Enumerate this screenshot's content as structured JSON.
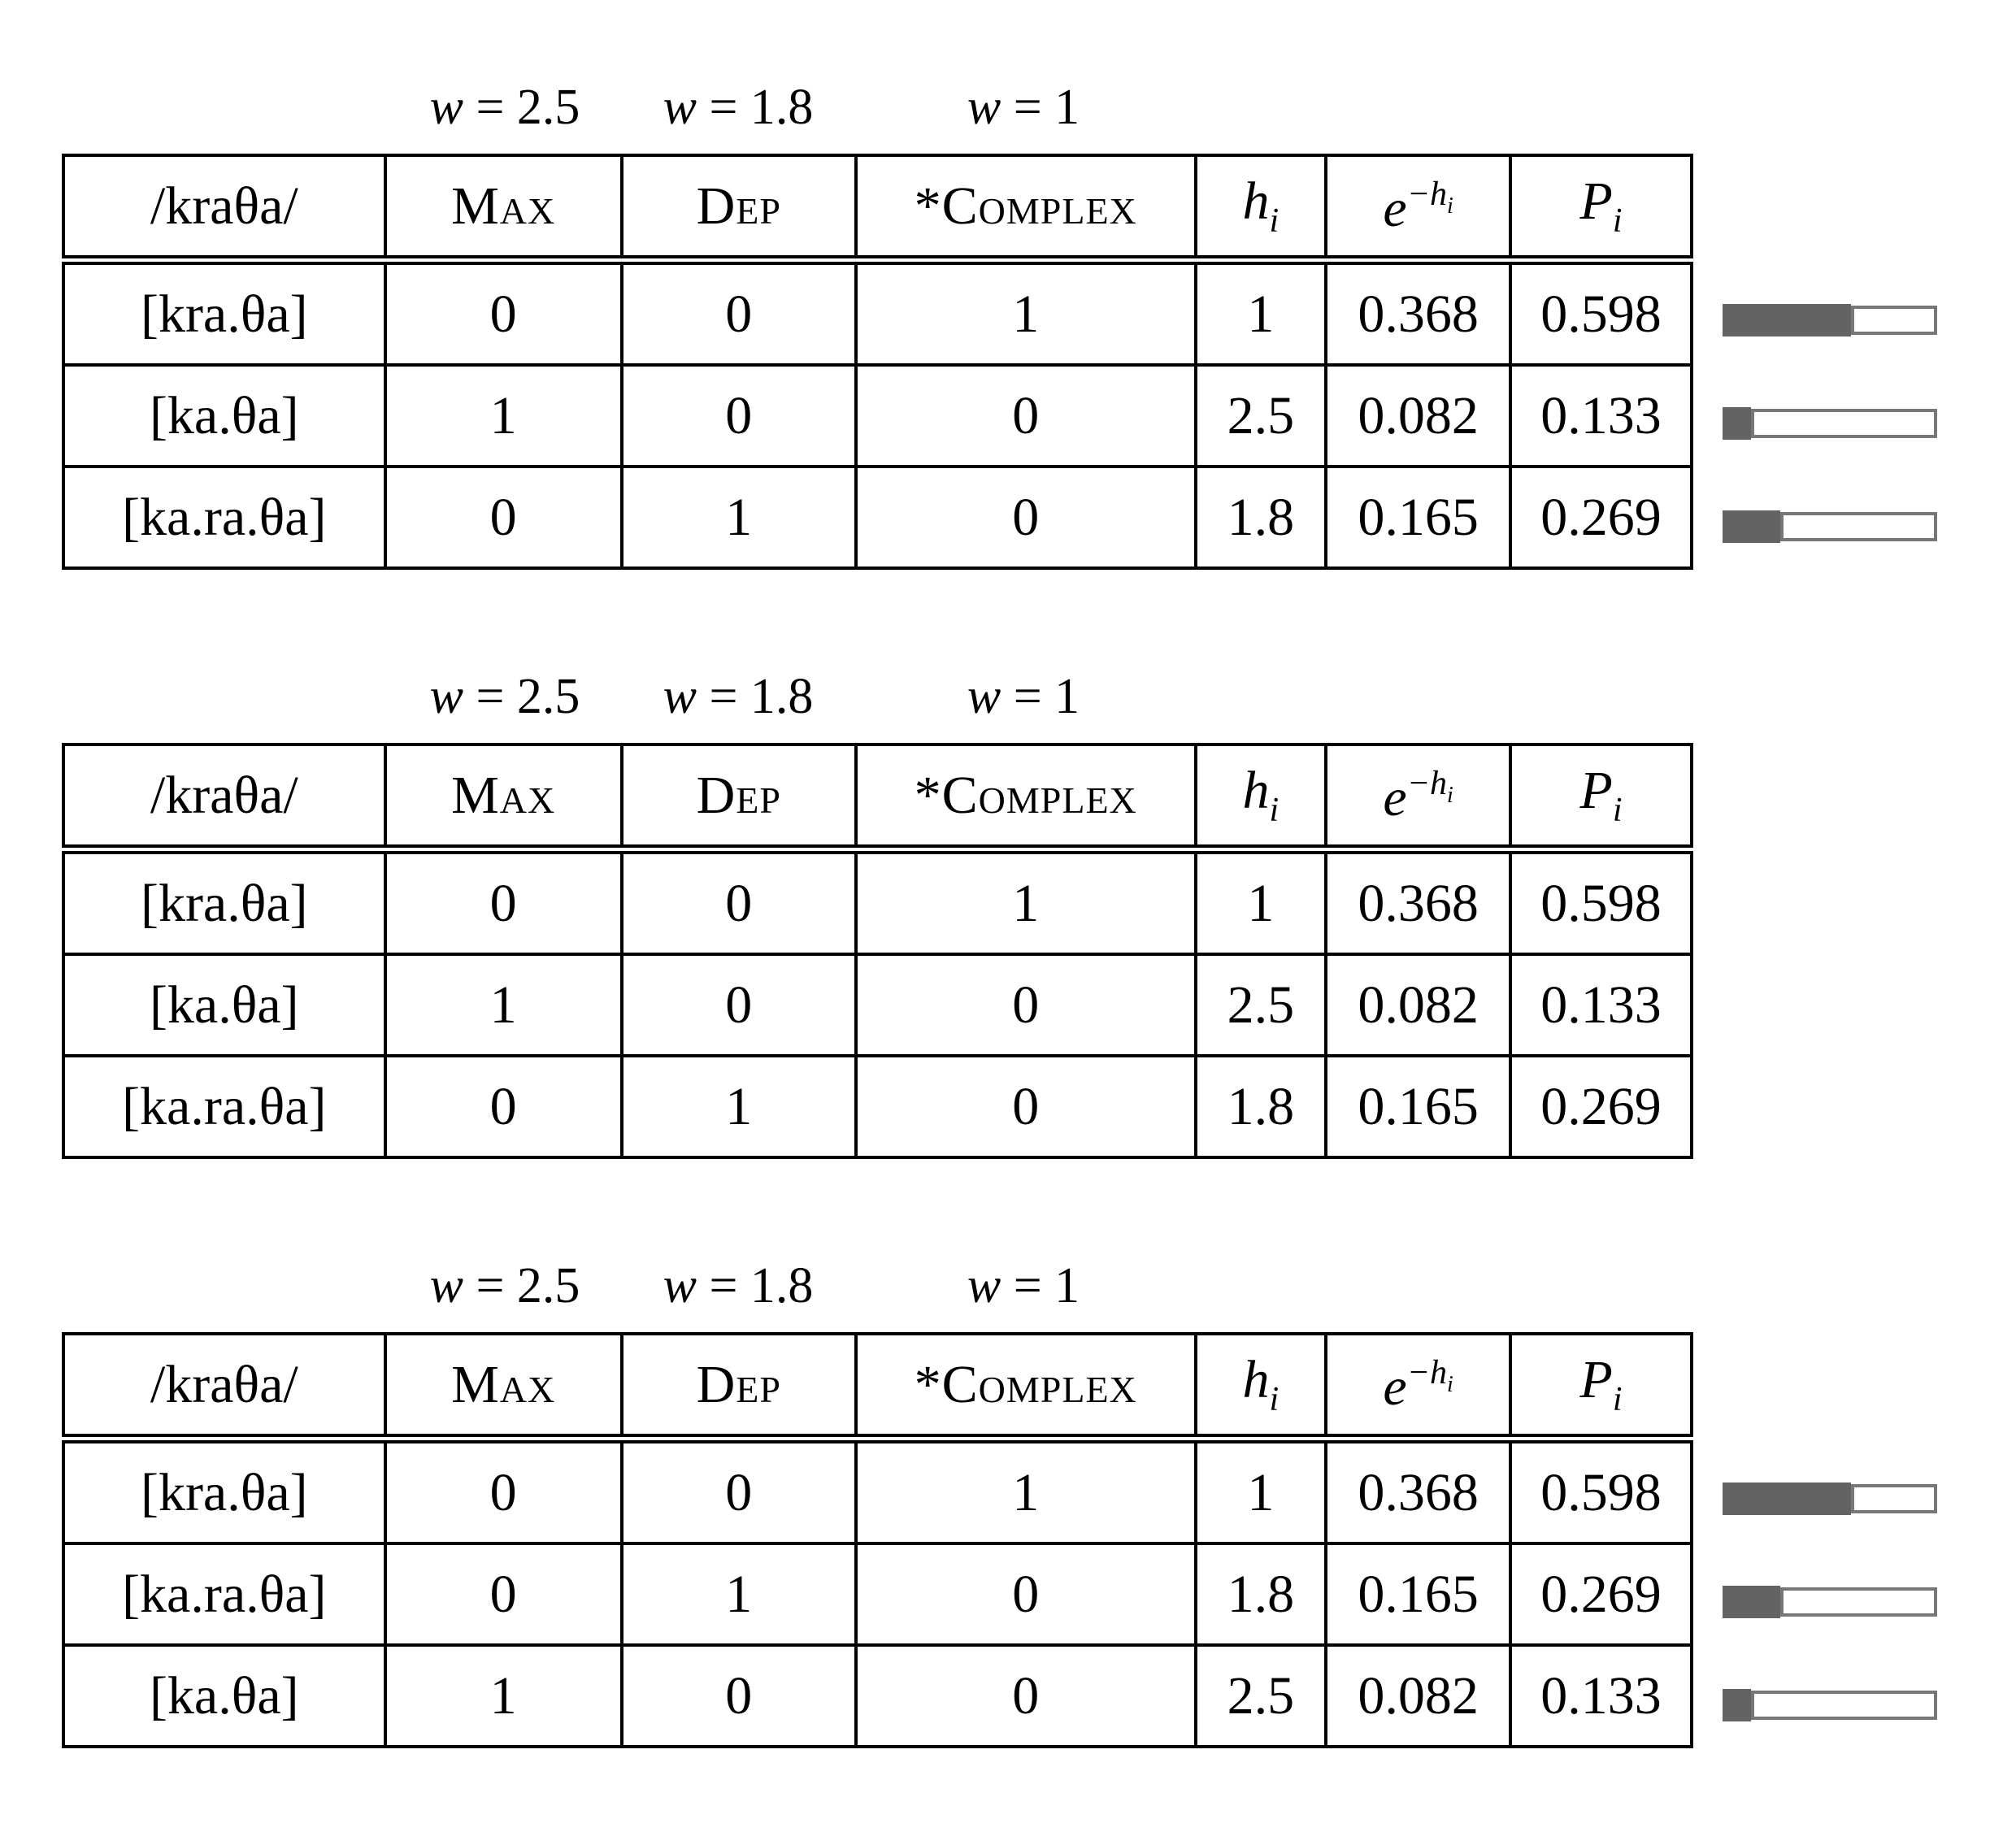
{
  "colors": {
    "background": "#ffffff",
    "table_line": "#000000",
    "bar_fill": "#636363",
    "bar_border": "#777777"
  },
  "tables": [
    {
      "input": "/kraθa/",
      "weights": [
        {
          "var": "w",
          "rest": " = 2.5"
        },
        {
          "var": "w",
          "rest": " = 1.8"
        },
        {
          "var": "w",
          "rest": " = 1"
        }
      ],
      "constraints": [
        "Max",
        "Dep",
        "*Complex"
      ],
      "math": {
        "h": "h",
        "h_sub": "i",
        "e": "e",
        "e_sup": "−h",
        "e_sup_sub": "i",
        "p": "P",
        "p_sub": "i"
      },
      "rows": [
        {
          "candidate": "[kra.θa]",
          "violations": [
            "0",
            "0",
            "1"
          ],
          "h": "1",
          "exp": "0.368",
          "p": "0.598"
        },
        {
          "candidate": "[ka.θa]",
          "violations": [
            "1",
            "0",
            "0"
          ],
          "h": "2.5",
          "exp": "0.082",
          "p": "0.133"
        },
        {
          "candidate": "[ka.ra.θa]",
          "violations": [
            "0",
            "1",
            "0"
          ],
          "h": "1.8",
          "exp": "0.165",
          "p": "0.269"
        }
      ],
      "has_bars": true
    },
    {
      "input": "/kraθa/",
      "weights": [
        {
          "var": "w",
          "rest": " = 2.5"
        },
        {
          "var": "w",
          "rest": " = 1.8"
        },
        {
          "var": "w",
          "rest": " = 1"
        }
      ],
      "constraints": [
        "Max",
        "Dep",
        "*Complex"
      ],
      "math": {
        "h": "h",
        "h_sub": "i",
        "e": "e",
        "e_sup": "−h",
        "e_sup_sub": "i",
        "p": "P",
        "p_sub": "i"
      },
      "rows": [
        {
          "candidate": "[kra.θa]",
          "violations": [
            "0",
            "0",
            "1"
          ],
          "h": "1",
          "exp": "0.368",
          "p": "0.598"
        },
        {
          "candidate": "[ka.θa]",
          "violations": [
            "1",
            "0",
            "0"
          ],
          "h": "2.5",
          "exp": "0.082",
          "p": "0.133"
        },
        {
          "candidate": "[ka.ra.θa]",
          "violations": [
            "0",
            "1",
            "0"
          ],
          "h": "1.8",
          "exp": "0.165",
          "p": "0.269"
        }
      ],
      "has_bars": false
    },
    {
      "input": "/kraθa/",
      "weights": [
        {
          "var": "w",
          "rest": " = 2.5"
        },
        {
          "var": "w",
          "rest": " = 1.8"
        },
        {
          "var": "w",
          "rest": " = 1"
        }
      ],
      "constraints": [
        "Max",
        "Dep",
        "*Complex"
      ],
      "math": {
        "h": "h",
        "h_sub": "i",
        "e": "e",
        "e_sup": "−h",
        "e_sup_sub": "i",
        "p": "P",
        "p_sub": "i"
      },
      "rows": [
        {
          "candidate": "[kra.θa]",
          "violations": [
            "0",
            "0",
            "1"
          ],
          "h": "1",
          "exp": "0.368",
          "p": "0.598"
        },
        {
          "candidate": "[ka.ra.θa]",
          "violations": [
            "0",
            "1",
            "0"
          ],
          "h": "1.8",
          "exp": "0.165",
          "p": "0.269"
        },
        {
          "candidate": "[ka.θa]",
          "violations": [
            "1",
            "0",
            "0"
          ],
          "h": "2.5",
          "exp": "0.082",
          "p": "0.133"
        }
      ],
      "has_bars": true
    }
  ]
}
